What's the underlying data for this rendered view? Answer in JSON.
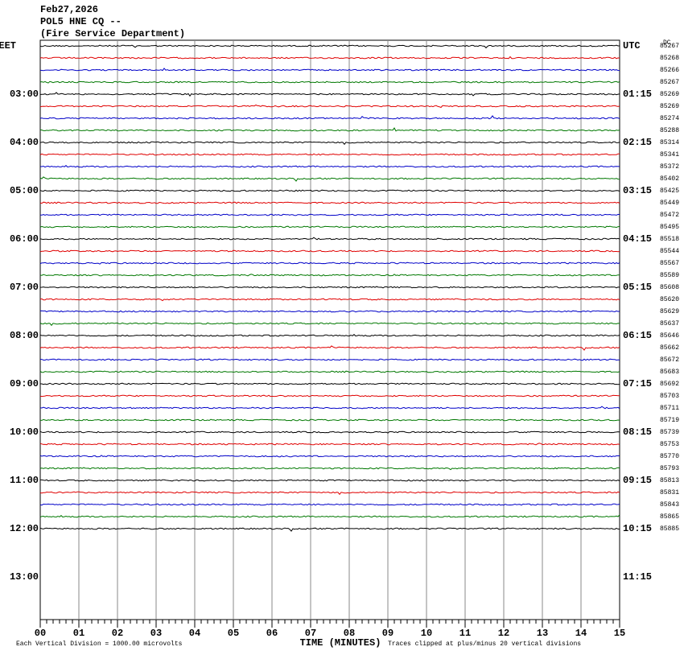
{
  "header": {
    "date": "Feb27,2026",
    "station": "POL5 HNE CQ --",
    "operator": "(Fire Service Department)"
  },
  "left_labels": [
    "EET",
    "03:00",
    "04:00",
    "05:00",
    "06:00",
    "07:00",
    "08:00",
    "09:00",
    "10:00",
    "11:00",
    "12:00",
    "13:00"
  ],
  "right_labels": [
    "UTC",
    "01:15",
    "02:15",
    "03:15",
    "04:15",
    "05:15",
    "06:15",
    "07:15",
    "08:15",
    "09:15",
    "10:15",
    "11:15"
  ],
  "dc_header": "DC",
  "dc_values": [
    85267,
    85268,
    85266,
    85267,
    85269,
    85269,
    85274,
    85288,
    85314,
    85341,
    85372,
    85402,
    85425,
    85449,
    85472,
    85495,
    85518,
    85544,
    85567,
    85589,
    85608,
    85620,
    85629,
    85637,
    85646,
    85662,
    85672,
    85683,
    85692,
    85703,
    85711,
    85719,
    85739,
    85753,
    85770,
    85793,
    85813,
    85831,
    85843,
    85865,
    85885
  ],
  "trace_colors": [
    "#000000",
    "#e00000",
    "#0000c8",
    "#007800"
  ],
  "x_ticks": [
    "00",
    "01",
    "02",
    "03",
    "04",
    "05",
    "06",
    "07",
    "08",
    "09",
    "10",
    "11",
    "12",
    "13",
    "14",
    "15"
  ],
  "x_axis_title": "TIME (MINUTES)",
  "footnote_left": "Each Vertical Division = 1000.00 microvolts",
  "footnote_right": "Traces clipped at plus/minus 20 vertical divisions"
}
